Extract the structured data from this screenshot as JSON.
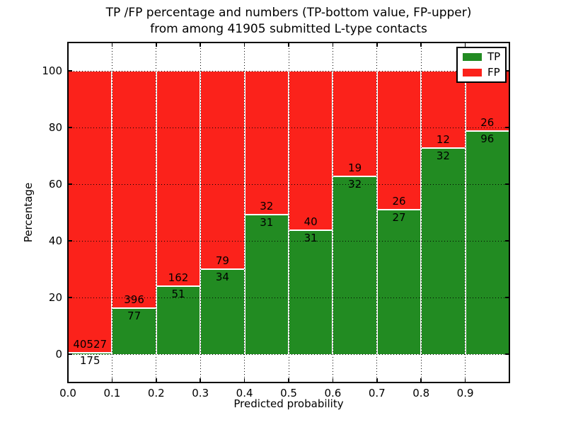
{
  "chart_data": {
    "type": "bar",
    "stacked": true,
    "title_lines": [
      "TP /FP percentage and numbers (TP-bottom value, FP-upper)",
      "from among 41905 submitted L-type contacts"
    ],
    "xlabel": "Predicted probability",
    "ylabel": "Percentage",
    "total_contacts": 41905,
    "xlim": [
      0.0,
      1.0
    ],
    "ylim": [
      -10,
      110
    ],
    "yticks": [
      0,
      20,
      40,
      60,
      80,
      100
    ],
    "ytick_labels": [
      "0",
      "20",
      "40",
      "60",
      "80",
      "100"
    ],
    "xtick_labels": [
      "0.0",
      "0.1",
      "0.2",
      "0.3",
      "0.4",
      "0.5",
      "0.6",
      "0.7",
      "0.8",
      "0.9"
    ],
    "bin_width": 0.1,
    "grid": true,
    "series": [
      {
        "name": "TP",
        "color": "#228b22",
        "counts": [
          175,
          77,
          51,
          34,
          31,
          31,
          32,
          27,
          32,
          96
        ]
      },
      {
        "name": "FP",
        "color": "#fb221b",
        "counts": [
          40527,
          396,
          162,
          79,
          32,
          40,
          19,
          26,
          12,
          26
        ]
      }
    ],
    "tp_percent_approx": [
      0.4,
      16.3,
      23.9,
      30.1,
      49.2,
      43.7,
      62.7,
      50.9,
      72.7,
      78.7
    ],
    "legend": {
      "position": "upper right",
      "entries": [
        "TP",
        "FP"
      ]
    }
  }
}
